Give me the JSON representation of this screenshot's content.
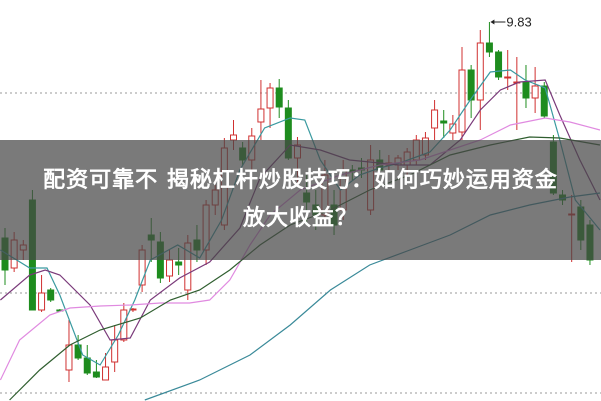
{
  "headline": {
    "line1": "配资可靠不 揭秘杠杆炒股技巧：如何巧妙运用资金",
    "line2": "放大收益？"
  },
  "chart_data": {
    "type": "candlestick",
    "ylim": [
      6.04,
      10.05
    ],
    "grid": true,
    "gridlines": [
      9.12,
      7.12,
      6.12
    ],
    "colors": {
      "up": "#d03030",
      "down": "#1e8c1e",
      "grid": "#999999"
    },
    "annotation": {
      "label": "9.83",
      "value": 9.83,
      "candle_index": 53
    },
    "candles": [
      [
        7.67,
        7.35,
        7.77,
        7.2
      ],
      [
        7.37,
        7.65,
        7.73,
        7.33
      ],
      [
        7.55,
        7.6,
        7.65,
        7.45
      ],
      [
        8.05,
        6.95,
        8.15,
        6.95
      ],
      [
        6.95,
        7.12,
        7.3,
        6.93
      ],
      [
        7.15,
        7.05,
        7.17,
        7.03
      ],
      [
        6.95,
        6.94,
        6.96,
        6.93
      ],
      [
        6.35,
        6.6,
        6.85,
        6.23
      ],
      [
        6.6,
        6.47,
        6.7,
        6.45
      ],
      [
        6.47,
        6.32,
        6.6,
        6.3
      ],
      [
        6.33,
        6.28,
        6.45,
        6.27
      ],
      [
        6.25,
        6.38,
        6.52,
        6.25
      ],
      [
        6.43,
        6.65,
        6.8,
        6.33
      ],
      [
        6.65,
        6.95,
        7.02,
        6.63
      ],
      [
        6.95,
        6.96,
        6.97,
        6.93
      ],
      [
        7.2,
        7.55,
        7.6,
        7.13
      ],
      [
        7.7,
        7.65,
        7.87,
        7.43
      ],
      [
        7.63,
        7.27,
        7.73,
        7.22
      ],
      [
        7.29,
        7.45,
        7.55,
        7.23
      ],
      [
        7.43,
        7.4,
        7.57,
        7.3
      ],
      [
        7.15,
        7.62,
        7.7,
        7.05
      ],
      [
        7.65,
        7.55,
        7.8,
        7.43
      ],
      [
        7.55,
        8.0,
        8.05,
        7.4
      ],
      [
        8.0,
        8.15,
        8.2,
        7.9
      ],
      [
        7.8,
        8.57,
        8.67,
        7.75
      ],
      [
        8.65,
        8.7,
        8.85,
        8.55
      ],
      [
        8.57,
        8.45,
        8.63,
        8.4
      ],
      [
        8.45,
        8.69,
        8.77,
        8.35
      ],
      [
        8.83,
        8.96,
        9.25,
        8.65
      ],
      [
        8.97,
        9.17,
        9.22,
        8.77
      ],
      [
        9.17,
        8.98,
        9.26,
        8.87
      ],
      [
        8.97,
        8.47,
        9.05,
        8.45
      ],
      [
        8.47,
        8.6,
        8.68,
        8.2
      ],
      [
        8.12,
        8.03,
        8.3,
        7.8
      ],
      [
        8.0,
        7.9,
        8.15,
        7.75
      ],
      [
        7.9,
        8.3,
        8.45,
        7.8
      ],
      [
        8.0,
        7.8,
        8.15,
        7.7
      ],
      [
        7.95,
        8.35,
        8.45,
        7.85
      ],
      [
        8.35,
        8.33,
        8.4,
        8.25
      ],
      [
        8.37,
        8.35,
        8.47,
        8.27
      ],
      [
        7.95,
        8.45,
        8.6,
        7.9
      ],
      [
        8.45,
        8.35,
        8.55,
        8.3
      ],
      [
        8.4,
        8.42,
        8.5,
        8.35
      ],
      [
        8.4,
        8.47,
        8.5,
        8.35
      ],
      [
        8.4,
        8.53,
        8.57,
        8.3
      ],
      [
        8.45,
        8.65,
        8.7,
        8.4
      ],
      [
        8.5,
        8.67,
        8.73,
        8.45
      ],
      [
        8.77,
        8.95,
        9.05,
        8.65
      ],
      [
        8.84,
        8.82,
        8.95,
        8.67
      ],
      [
        8.72,
        8.81,
        8.9,
        8.65
      ],
      [
        8.73,
        9.35,
        9.58,
        8.65
      ],
      [
        9.35,
        9.05,
        9.4,
        8.87
      ],
      [
        9.05,
        9.62,
        9.75,
        8.75
      ],
      [
        9.62,
        9.53,
        9.83,
        9.48
      ],
      [
        9.53,
        9.28,
        9.55,
        9.25
      ],
      [
        9.27,
        9.28,
        9.55,
        9.15
      ],
      [
        9.22,
        9.23,
        9.48,
        8.75
      ],
      [
        9.23,
        9.07,
        9.4,
        8.97
      ],
      [
        9.07,
        9.19,
        9.38,
        8.92
      ],
      [
        9.19,
        8.89,
        9.23,
        8.87
      ],
      [
        8.63,
        8.12,
        8.7,
        8.1
      ],
      [
        8.1,
        8.05,
        8.15,
        8.0
      ],
      [
        7.9,
        7.91,
        8.1,
        7.43
      ],
      [
        7.98,
        7.65,
        8.05,
        7.55
      ],
      [
        7.8,
        7.45,
        7.85,
        7.4
      ]
    ],
    "candle_fields": [
      "open",
      "close",
      "high",
      "low"
    ],
    "moving_averages": [
      {
        "color": "#3a9aa0",
        "points": [
          [
            -0.5,
            7.55
          ],
          [
            2.7,
            7.37
          ],
          [
            4.6,
            7.37
          ],
          [
            6.0,
            7.1
          ],
          [
            8.5,
            6.5
          ],
          [
            10.4,
            6.4
          ],
          [
            12.4,
            6.7
          ],
          [
            14.2,
            7.05
          ],
          [
            15.9,
            7.45
          ],
          [
            18.9,
            7.6
          ],
          [
            21.3,
            7.47
          ],
          [
            23.7,
            7.85
          ],
          [
            25.7,
            8.35
          ],
          [
            28.4,
            8.77
          ],
          [
            31.2,
            8.87
          ],
          [
            32.8,
            8.85
          ],
          [
            34.5,
            8.45
          ],
          [
            36.7,
            8.15
          ],
          [
            38.8,
            8.3
          ],
          [
            41.0,
            8.37
          ],
          [
            43.2,
            8.42
          ],
          [
            46.5,
            8.53
          ],
          [
            48.7,
            8.75
          ],
          [
            50.9,
            9.05
          ],
          [
            53.1,
            9.33
          ],
          [
            55.3,
            9.35
          ],
          [
            56.9,
            9.25
          ],
          [
            59.1,
            9.17
          ],
          [
            60.7,
            8.65
          ],
          [
            62.4,
            8.05
          ],
          [
            65.1,
            7.75
          ]
        ]
      },
      {
        "color": "#7a3a7a",
        "points": [
          [
            -0.5,
            7.05
          ],
          [
            2.7,
            7.3
          ],
          [
            4.4,
            7.35
          ],
          [
            6.0,
            7.3
          ],
          [
            9.3,
            7.0
          ],
          [
            11.5,
            6.65
          ],
          [
            13.7,
            6.67
          ],
          [
            15.9,
            7.05
          ],
          [
            19.1,
            7.27
          ],
          [
            22.4,
            7.43
          ],
          [
            25.7,
            7.77
          ],
          [
            27.9,
            8.27
          ],
          [
            31.2,
            8.6
          ],
          [
            34.5,
            8.55
          ],
          [
            37.7,
            8.45
          ],
          [
            41.0,
            8.42
          ],
          [
            43.2,
            8.4
          ],
          [
            46.5,
            8.4
          ],
          [
            49.8,
            8.65
          ],
          [
            52.0,
            8.95
          ],
          [
            54.2,
            9.15
          ],
          [
            56.3,
            9.23
          ],
          [
            59.1,
            9.25
          ],
          [
            60.7,
            8.9
          ],
          [
            62.9,
            8.45
          ],
          [
            65.1,
            8.05
          ]
        ]
      },
      {
        "color": "#e08ae0",
        "points": [
          [
            -0.5,
            6.25
          ],
          [
            1.6,
            6.65
          ],
          [
            4.9,
            6.9
          ],
          [
            7.1,
            6.97
          ],
          [
            10.4,
            6.99
          ],
          [
            13.7,
            7.0
          ],
          [
            17.0,
            7.02
          ],
          [
            20.2,
            7.02
          ],
          [
            22.4,
            7.05
          ],
          [
            24.6,
            7.25
          ],
          [
            26.8,
            7.6
          ],
          [
            29.0,
            7.9
          ],
          [
            32.3,
            8.15
          ],
          [
            36.7,
            8.3
          ],
          [
            41.0,
            8.4
          ],
          [
            45.4,
            8.45
          ],
          [
            48.7,
            8.55
          ],
          [
            52.0,
            8.65
          ],
          [
            55.3,
            8.8
          ],
          [
            59.1,
            8.87
          ],
          [
            61.8,
            8.83
          ],
          [
            65.1,
            8.75
          ]
        ]
      },
      {
        "color": "#2f5e2f",
        "points": [
          [
            0.5,
            6.05
          ],
          [
            3.8,
            6.35
          ],
          [
            7.1,
            6.6
          ],
          [
            10.4,
            6.75
          ],
          [
            14.8,
            6.87
          ],
          [
            18.1,
            7.05
          ],
          [
            21.3,
            7.15
          ],
          [
            24.6,
            7.35
          ],
          [
            27.9,
            7.6
          ],
          [
            31.2,
            7.8
          ],
          [
            35.6,
            7.95
          ],
          [
            39.9,
            8.15
          ],
          [
            44.3,
            8.3
          ],
          [
            48.7,
            8.5
          ],
          [
            53.1,
            8.6
          ],
          [
            57.4,
            8.68
          ],
          [
            60.7,
            8.67
          ],
          [
            65.1,
            8.6
          ]
        ]
      },
      {
        "color": "#3a8a99",
        "points": [
          [
            15.3,
            6.05
          ],
          [
            21.3,
            6.25
          ],
          [
            26.8,
            6.5
          ],
          [
            31.2,
            6.8
          ],
          [
            35.6,
            7.15
          ],
          [
            39.9,
            7.4
          ],
          [
            44.3,
            7.55
          ],
          [
            48.7,
            7.7
          ],
          [
            53.1,
            7.9
          ],
          [
            57.4,
            8.0
          ],
          [
            61.8,
            8.08
          ],
          [
            65.1,
            8.12
          ]
        ]
      }
    ]
  }
}
